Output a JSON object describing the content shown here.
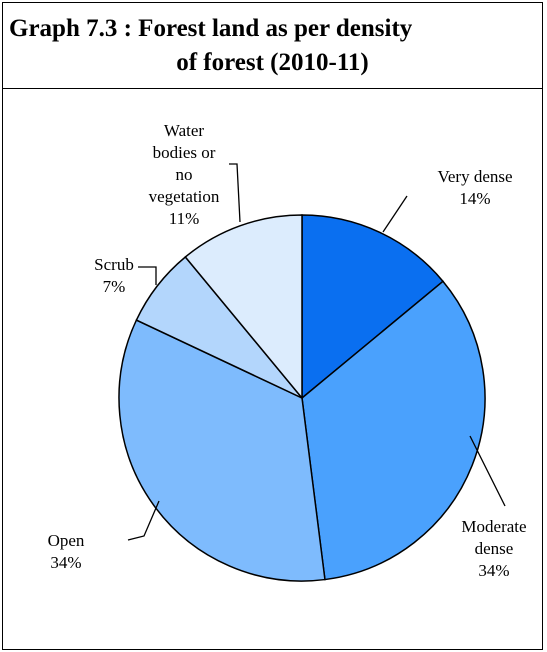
{
  "title_line1": "Graph 7.3 : Forest land as per density",
  "title_line2": "of forest (2010-11)",
  "chart_data": {
    "type": "pie",
    "title": "Graph 7.3 : Forest land as per density of forest (2010-11)",
    "slices": [
      {
        "lines": [
          "Very dense"
        ],
        "pct_label": "14%",
        "value": 14,
        "color": "#0a6ff0"
      },
      {
        "lines": [
          "Moderate",
          "dense"
        ],
        "pct_label": "34%",
        "value": 34,
        "color": "#4aa1fd"
      },
      {
        "lines": [
          "Open"
        ],
        "pct_label": "34%",
        "value": 34,
        "color": "#7ebbfd"
      },
      {
        "lines": [
          "Scrub"
        ],
        "pct_label": "7%",
        "value": 7,
        "color": "#b3d6fc"
      },
      {
        "lines": [
          "Water",
          "bodies or",
          "no",
          "vegetation"
        ],
        "pct_label": "11%",
        "value": 11,
        "color": "#dcecfd"
      }
    ]
  }
}
